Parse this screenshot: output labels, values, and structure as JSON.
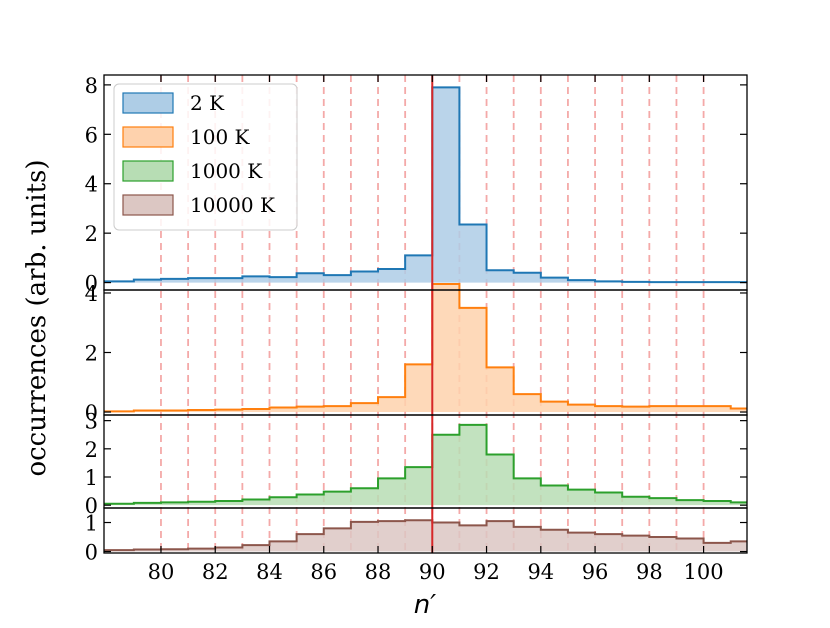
{
  "chart_data": {
    "type": "area",
    "xlabel": "n′",
    "ylabel": "occurrences (arb. units)",
    "x_ticks": [
      80,
      82,
      84,
      86,
      88,
      90,
      92,
      94,
      96,
      98,
      100
    ],
    "xlim": [
      77.9,
      101.6
    ],
    "vline": {
      "x": 90,
      "color": "#d62728"
    },
    "dashed_lines": [
      80,
      81,
      82,
      83,
      84,
      85,
      86,
      87,
      88,
      89,
      90,
      91,
      92,
      93,
      94,
      95,
      96,
      97,
      98,
      99,
      100
    ],
    "dashed_color": "#f4a9a8",
    "legend_position": "upper left",
    "bin_edges": [
      77.9,
      79,
      80,
      81,
      82,
      83,
      84,
      85,
      86,
      87,
      88,
      89,
      90,
      91,
      92,
      93,
      94,
      95,
      96,
      97,
      98,
      99,
      100,
      101,
      101.6
    ],
    "panels": [
      {
        "name": "2 K",
        "color": "#1f77b4",
        "fill": "#aecde6",
        "ylim": [
          -0.3,
          8.4
        ],
        "y_ticks": [
          0,
          2,
          4,
          6,
          8
        ],
        "values": [
          0.05,
          0.12,
          0.15,
          0.18,
          0.18,
          0.25,
          0.22,
          0.38,
          0.3,
          0.45,
          0.55,
          1.1,
          7.9,
          2.35,
          0.5,
          0.4,
          0.2,
          0.1,
          0.05,
          0.03,
          0.02,
          0.02,
          0.02,
          0.02
        ]
      },
      {
        "name": "100 K",
        "color": "#ff7f0e",
        "fill": "#fed2ad",
        "ylim": [
          -0.1,
          4.1
        ],
        "y_ticks": [
          0,
          2,
          4
        ],
        "values": [
          0.02,
          0.05,
          0.05,
          0.07,
          0.08,
          0.1,
          0.15,
          0.18,
          0.2,
          0.3,
          0.5,
          1.6,
          4.3,
          3.5,
          1.5,
          0.6,
          0.35,
          0.25,
          0.2,
          0.18,
          0.2,
          0.2,
          0.2,
          0.12
        ]
      },
      {
        "name": "1000 K",
        "color": "#2ca02c",
        "fill": "#b7ddb4",
        "ylim": [
          -0.1,
          3.2
        ],
        "y_ticks": [
          0,
          1,
          2,
          3
        ],
        "values": [
          0.05,
          0.08,
          0.1,
          0.12,
          0.15,
          0.2,
          0.28,
          0.38,
          0.48,
          0.6,
          0.95,
          1.35,
          2.5,
          2.85,
          1.8,
          0.95,
          0.7,
          0.55,
          0.45,
          0.3,
          0.25,
          0.18,
          0.15,
          0.1
        ]
      },
      {
        "name": "10000 K",
        "color": "#8c564b",
        "fill": "#dcc7c3",
        "ylim": [
          -0.05,
          1.5
        ],
        "y_ticks": [
          0,
          1
        ],
        "values": [
          0.05,
          0.07,
          0.08,
          0.1,
          0.14,
          0.22,
          0.35,
          0.6,
          0.8,
          1.02,
          1.05,
          1.08,
          1.0,
          0.9,
          1.05,
          0.85,
          0.75,
          0.65,
          0.6,
          0.55,
          0.5,
          0.45,
          0.3,
          0.35
        ]
      }
    ],
    "legend": [
      {
        "label": "2 K",
        "color": "#1f77b4",
        "fill": "#aecde6"
      },
      {
        "label": "100 K",
        "color": "#ff7f0e",
        "fill": "#fed2ad"
      },
      {
        "label": "1000 K",
        "color": "#2ca02c",
        "fill": "#b7ddb4"
      },
      {
        "label": "10000 K",
        "color": "#8c564b",
        "fill": "#dcc7c3"
      }
    ]
  }
}
